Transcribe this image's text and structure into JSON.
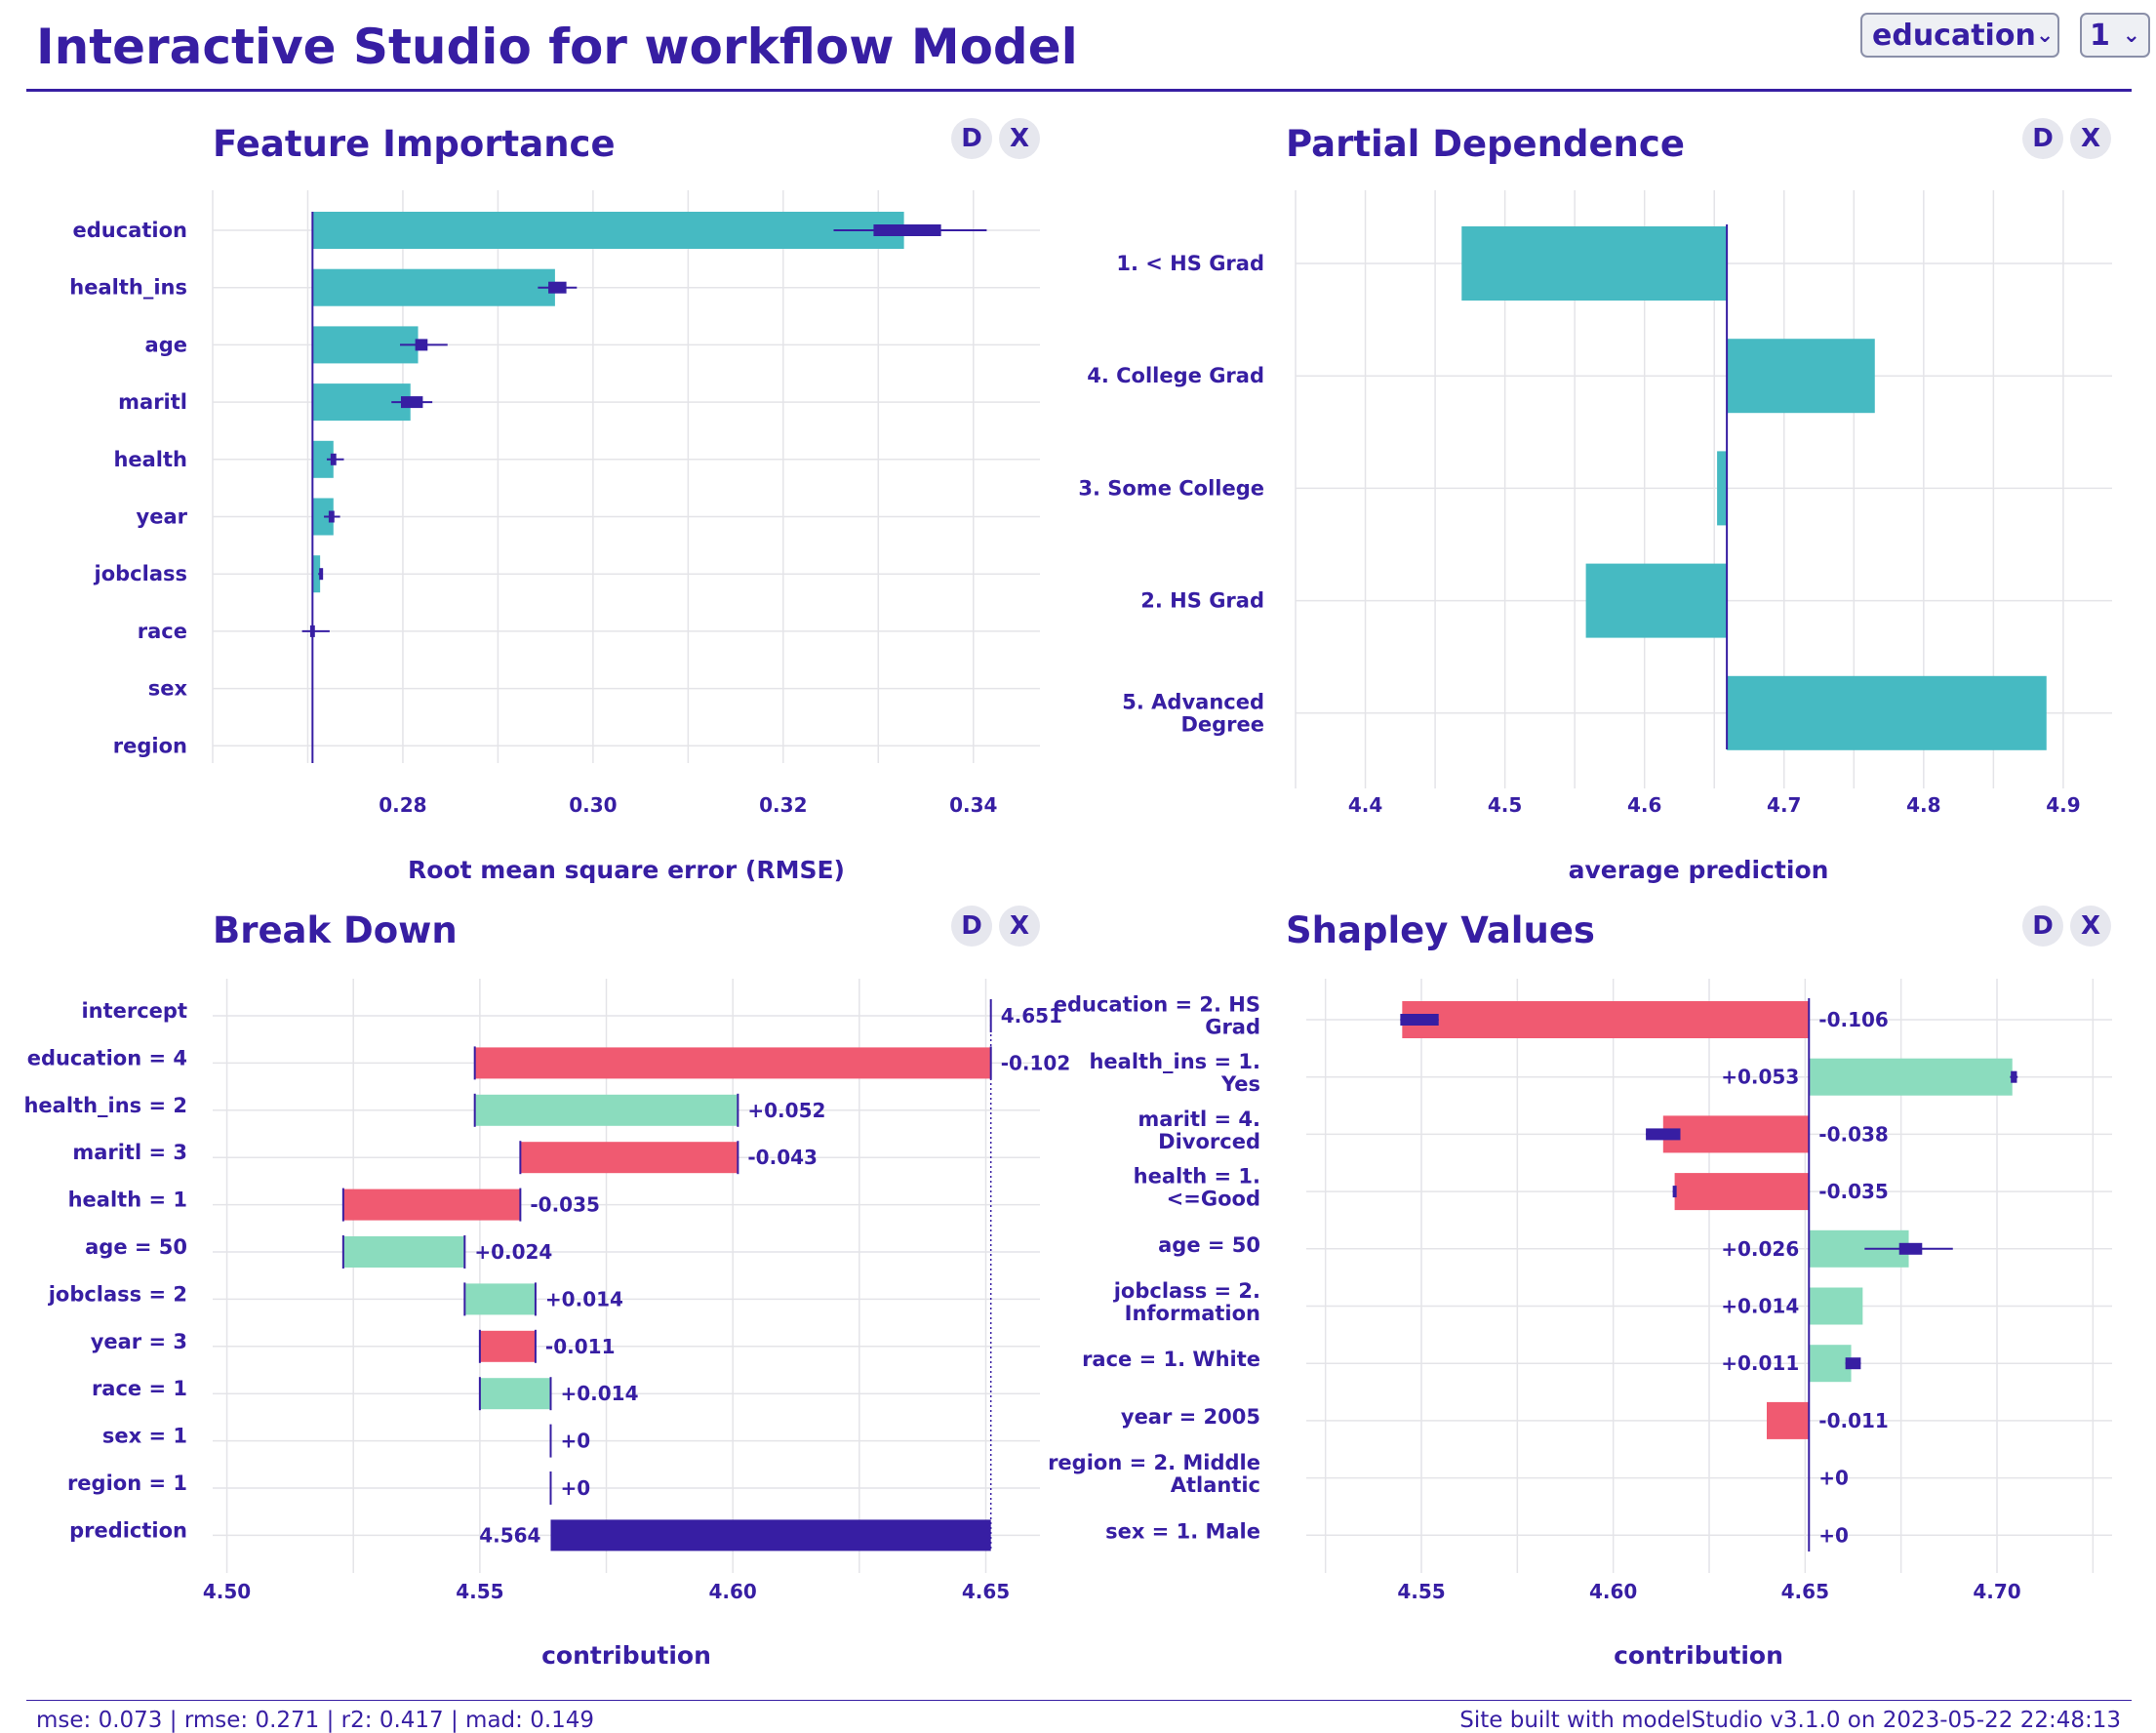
{
  "header": {
    "title": "Interactive Studio for workflow Model",
    "variable_select": "education",
    "observation_select": "1"
  },
  "buttons": {
    "describe": "D",
    "close": "X"
  },
  "colors": {
    "primary": "#371ea3",
    "teal": "#46bac2",
    "positive": "#8bdcbe",
    "negative": "#f05a71",
    "grid": "#e4e4e8"
  },
  "footer": {
    "metrics": "mse: 0.073 | rmse: 0.271 | r2: 0.417 | mad: 0.149",
    "built": "Site built with modelStudio v3.1.0 on 2023-05-22 22:48:13"
  },
  "chart_data": [
    {
      "id": "feature_importance",
      "type": "bar",
      "title": "Feature Importance",
      "xlabel": "Root mean square error (RMSE)",
      "baseline": 0.2705,
      "xlim": [
        0.26,
        0.347
      ],
      "xticks": [
        0.28,
        0.3,
        0.32,
        0.34
      ],
      "xtick_labels": [
        "0.28",
        "0.30",
        "0.32",
        "0.34"
      ],
      "categories": [
        "education",
        "health_ins",
        "age",
        "maritl",
        "health",
        "year",
        "jobclass",
        "race",
        "sex",
        "region"
      ],
      "values": [
        0.3327,
        0.296,
        0.2816,
        0.2808,
        0.2727,
        0.2727,
        0.2713,
        0.2705,
        0.2705,
        0.2705
      ],
      "box_low": [
        0.3295,
        0.2953,
        0.2813,
        0.2798,
        0.2724,
        0.2722,
        0.2712,
        0.27025,
        0.2705,
        0.2705
      ],
      "box_high": [
        0.3366,
        0.2972,
        0.2826,
        0.2821,
        0.273,
        0.2728,
        0.2714,
        0.27075,
        0.2705,
        0.2705
      ],
      "whisker_low": [
        0.3253,
        0.2942,
        0.2797,
        0.2788,
        0.272,
        0.2717,
        0.2711,
        0.2694,
        0.2705,
        0.2705
      ],
      "whisker_high": [
        0.3414,
        0.2983,
        0.2847,
        0.2831,
        0.2738,
        0.2734,
        0.2715,
        0.2723,
        0.2705,
        0.2705
      ]
    },
    {
      "id": "partial_dependence",
      "type": "bar",
      "title": "Partial Dependence",
      "xlabel": "average prediction",
      "baseline": 4.659,
      "xlim": [
        4.35,
        4.935
      ],
      "xticks": [
        4.4,
        4.5,
        4.6,
        4.7,
        4.8,
        4.9
      ],
      "xtick_labels": [
        "4.4",
        "4.5",
        "4.6",
        "4.7",
        "4.8",
        "4.9"
      ],
      "categories": [
        [
          "1. < HS Grad"
        ],
        [
          "4. College Grad"
        ],
        [
          "3. Some College"
        ],
        [
          "2. HS Grad"
        ],
        [
          "5. Advanced",
          "Degree"
        ]
      ],
      "values": [
        4.469,
        4.765,
        4.652,
        4.558,
        4.888
      ]
    },
    {
      "id": "break_down",
      "type": "bar",
      "title": "Break Down",
      "xlabel": "contribution",
      "xlim": [
        4.4997,
        4.6607
      ],
      "xticks": [
        4.5,
        4.55,
        4.6,
        4.65
      ],
      "xtick_labels": [
        "4.50",
        "4.55",
        "4.60",
        "4.65"
      ],
      "categories": [
        "intercept",
        "education = 4",
        "health_ins = 2",
        "maritl = 3",
        "health = 1",
        "age = 50",
        "jobclass = 2",
        "year = 3",
        "race = 1",
        "sex = 1",
        "region = 1",
        "prediction"
      ],
      "starts": [
        4.651,
        4.651,
        4.549,
        4.601,
        4.558,
        4.523,
        4.547,
        4.561,
        4.55,
        4.564,
        4.564,
        4.564
      ],
      "ends": [
        4.651,
        4.549,
        4.601,
        4.558,
        4.523,
        4.547,
        4.561,
        4.55,
        4.564,
        4.564,
        4.564,
        4.651
      ],
      "labels": [
        "4.651",
        "-0.102",
        "+0.052",
        "-0.043",
        "-0.035",
        "+0.024",
        "+0.014",
        "-0.011",
        "+0.014",
        "+0",
        "+0",
        "4.564"
      ],
      "kinds": [
        "intercept",
        "neg",
        "pos",
        "neg",
        "neg",
        "pos",
        "pos",
        "neg",
        "pos",
        "zero",
        "zero",
        "prediction"
      ]
    },
    {
      "id": "shapley_values",
      "type": "bar",
      "title": "Shapley Values",
      "xlabel": "contribution",
      "baseline": 4.651,
      "xlim": [
        4.52,
        4.73
      ],
      "xticks": [
        4.55,
        4.6,
        4.65,
        4.7
      ],
      "xtick_labels": [
        "4.55",
        "4.60",
        "4.65",
        "4.70"
      ],
      "categories": [
        [
          "education = 2. HS",
          "Grad"
        ],
        [
          "health_ins = 1.",
          "Yes"
        ],
        [
          "maritl = 4.",
          "Divorced"
        ],
        [
          "health = 1.",
          "<=Good"
        ],
        [
          "age = 50"
        ],
        [
          "jobclass = 2.",
          "Information"
        ],
        [
          "race = 1. White"
        ],
        [
          "year = 2005"
        ],
        [
          "region = 2. Middle",
          "Atlantic"
        ],
        [
          "sex = 1. Male"
        ]
      ],
      "values": [
        -0.106,
        0.053,
        -0.038,
        -0.035,
        0.026,
        0.014,
        0.011,
        -0.011,
        0,
        0
      ],
      "labels": [
        "-0.106",
        "+0.053",
        "-0.038",
        "-0.035",
        "+0.026",
        "+0.014",
        "+0.011",
        "-0.011",
        "+0",
        "+0"
      ],
      "box_low": [
        4.5445,
        4.7036,
        4.6085,
        4.6155,
        4.6745,
        null,
        4.6605,
        null,
        null,
        null
      ],
      "box_high": [
        4.5545,
        4.7052,
        4.6175,
        4.6162,
        4.6805,
        null,
        4.6645,
        null,
        null,
        null
      ],
      "whisker_low": [
        4.5445,
        4.7034,
        4.6085,
        4.6155,
        4.6655,
        null,
        4.6605,
        null,
        null,
        null
      ],
      "whisker_high": [
        4.5545,
        4.7054,
        4.6175,
        4.6162,
        4.6885,
        null,
        4.6645,
        null,
        null,
        null
      ]
    }
  ]
}
